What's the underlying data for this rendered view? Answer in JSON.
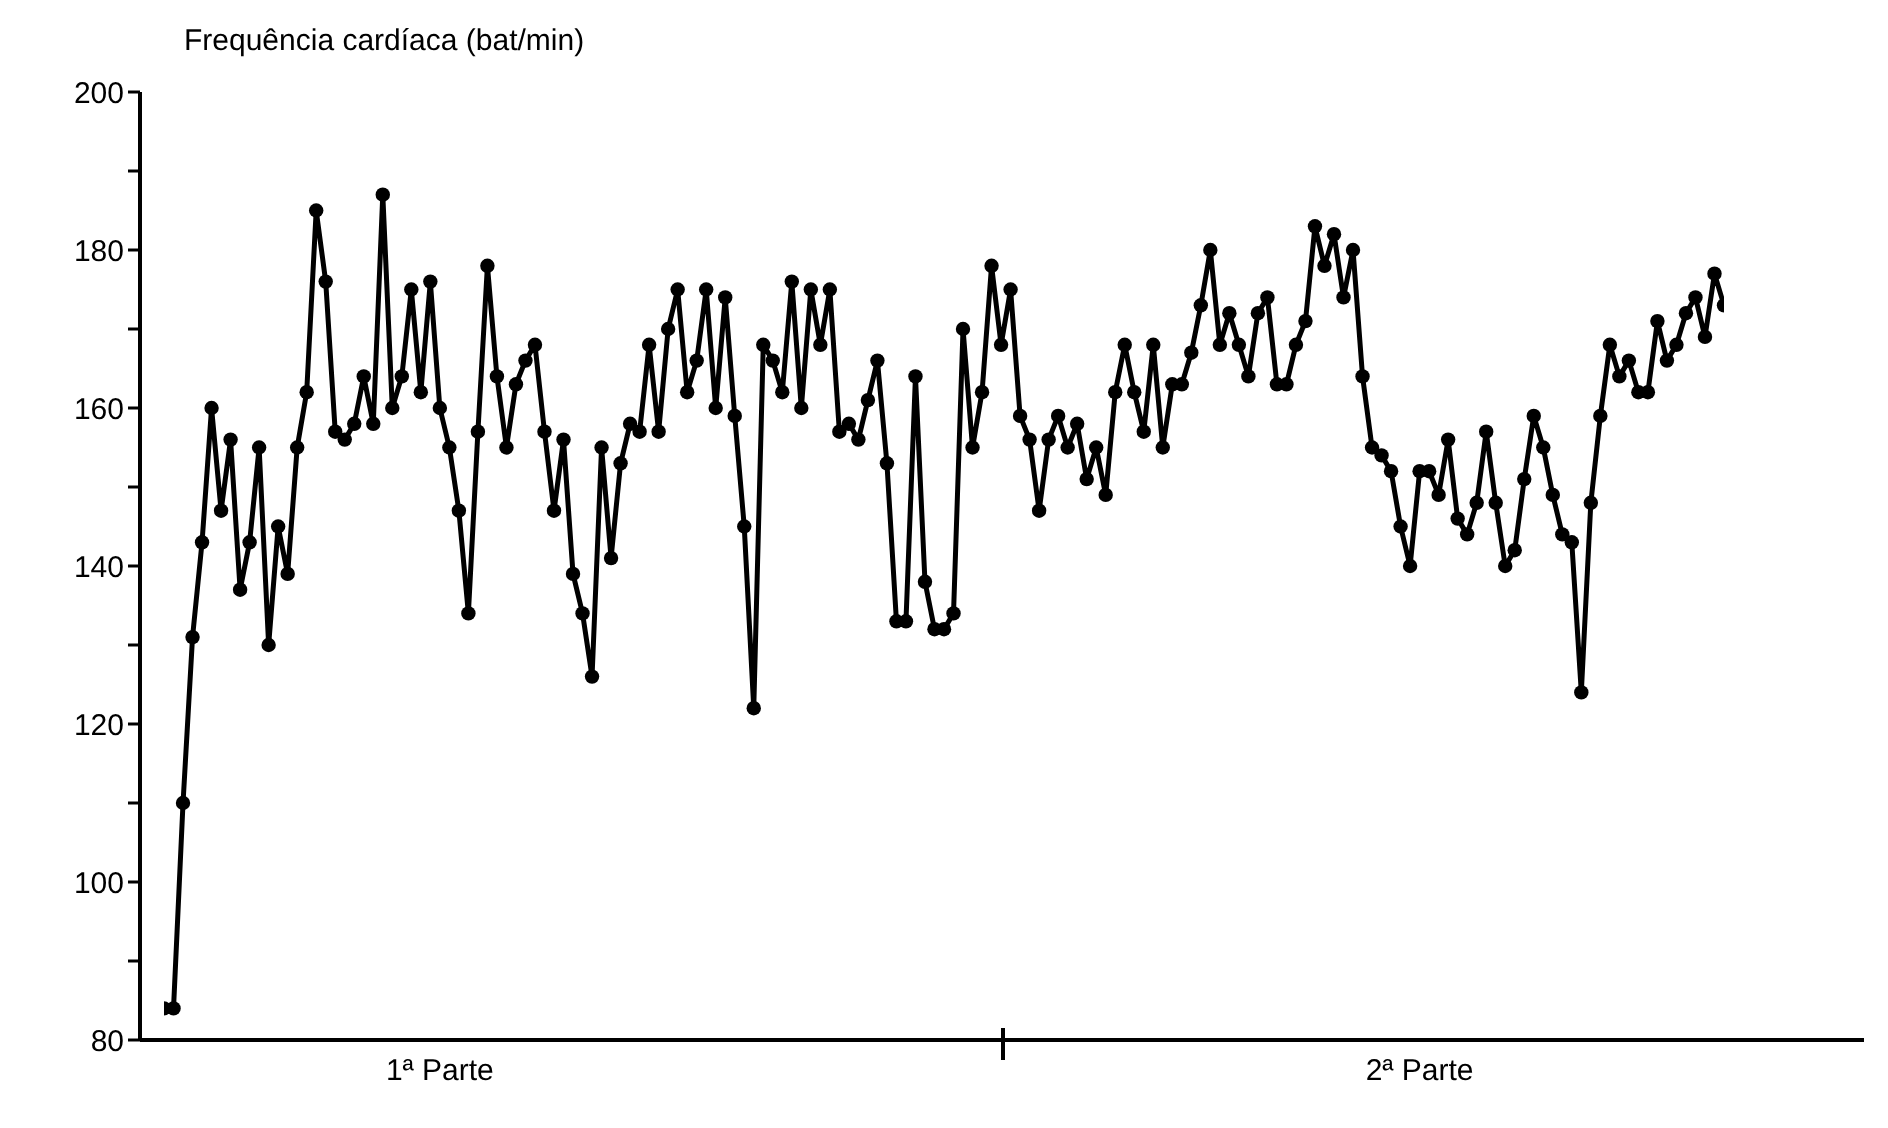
{
  "chart_data": {
    "type": "line",
    "ylabel": "Frequência cardíaca (bat/min)",
    "categories": [
      null,
      null,
      null,
      null,
      null,
      null,
      null,
      null,
      null,
      null,
      null,
      null,
      null,
      null,
      null,
      null,
      null,
      null,
      null,
      null,
      null,
      null,
      null,
      null,
      null,
      null,
      null,
      null,
      null,
      "1ª Parte",
      null,
      null,
      null,
      null,
      null,
      null,
      null,
      null,
      null,
      null,
      null,
      null,
      null,
      null,
      null,
      null,
      null,
      null,
      null,
      null,
      null,
      null,
      null,
      null,
      null,
      null,
      null,
      null,
      null,
      null,
      null,
      null,
      null,
      null,
      null,
      null,
      null,
      null,
      null,
      null,
      null,
      null,
      null,
      null,
      null,
      null,
      null,
      null,
      null,
      null,
      null,
      null,
      null,
      null,
      null,
      null,
      null,
      null,
      null,
      null,
      null,
      null,
      null,
      null,
      null,
      null,
      null,
      null,
      null,
      null,
      null,
      null,
      null,
      null,
      null,
      null,
      null,
      null,
      null,
      null,
      null,
      null,
      null,
      null,
      null,
      null,
      null,
      null,
      null,
      null,
      null,
      null,
      null,
      null,
      null,
      null,
      null,
      null,
      null,
      null,
      null,
      null,
      "2ª Parte",
      null,
      null,
      null,
      null,
      null,
      null,
      null,
      null,
      null,
      null,
      null,
      null,
      null,
      null,
      null,
      null,
      null,
      null,
      null,
      null,
      null,
      null,
      null,
      null,
      null,
      null,
      null,
      null,
      null,
      null,
      null,
      null
    ],
    "ylim": [
      80,
      200
    ],
    "yticks": [
      80,
      {
        "value": 90,
        "label": null
      },
      100,
      {
        "value": 110,
        "label": null
      },
      120,
      {
        "value": 130,
        "label": null
      },
      140,
      {
        "value": 150,
        "label": null
      },
      160,
      {
        "value": 170,
        "label": null
      },
      180,
      {
        "value": 190,
        "label": null
      },
      200
    ],
    "marker": "circle",
    "line_style": "solid",
    "series": [
      {
        "color": "#000000",
        "values": [
          84,
          84,
          110,
          131,
          143,
          160,
          147,
          156,
          137,
          143,
          155,
          130,
          145,
          139,
          155,
          162,
          185,
          176,
          157,
          156,
          158,
          164,
          158,
          187,
          160,
          164,
          175,
          162,
          176,
          160,
          155,
          147,
          134,
          157,
          178,
          164,
          155,
          163,
          166,
          168,
          157,
          147,
          156,
          139,
          134,
          126,
          155,
          141,
          153,
          158,
          157,
          168,
          157,
          170,
          175,
          162,
          166,
          175,
          160,
          174,
          159,
          145,
          122,
          168,
          166,
          162,
          176,
          160,
          175,
          168,
          175,
          157,
          158,
          156,
          161,
          166,
          153,
          133,
          133,
          164,
          138,
          132,
          132,
          134,
          170,
          155,
          162,
          178,
          168,
          175,
          159,
          156,
          147,
          156,
          159,
          155,
          158,
          151,
          155,
          149,
          162,
          168,
          162,
          157,
          168,
          155,
          163,
          163,
          167,
          173,
          180,
          168,
          172,
          168,
          164,
          172,
          174,
          163,
          163,
          168,
          171,
          183,
          178,
          182,
          174,
          180,
          164,
          155,
          154,
          152,
          145,
          140,
          152,
          152,
          149,
          156,
          146,
          144,
          148,
          157,
          148,
          140,
          142,
          151,
          159,
          155,
          149,
          144,
          143,
          124,
          148,
          159,
          168,
          164,
          166,
          162,
          162,
          171,
          166,
          168,
          172,
          174,
          169,
          177,
          173
        ]
      }
    ]
  }
}
